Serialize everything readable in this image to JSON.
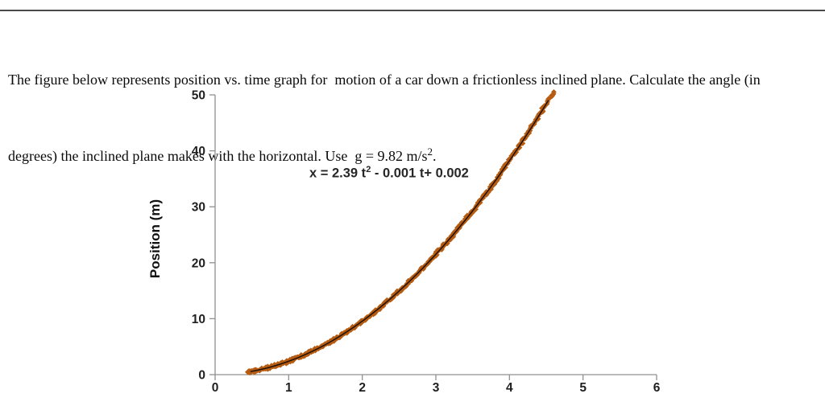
{
  "problem": {
    "line1": "The figure below represents position vs. time graph for  motion of a car down a frictionless inclined plane. Calculate the angle (in",
    "line2_prefix": "degrees) the inclined plane makes with the horizontal. Use  g = 9.82 m/s",
    "line2_sup": "2",
    "line2_suffix": "."
  },
  "chart_data": {
    "type": "scatter",
    "title": "",
    "xlabel": "",
    "ylabel": "Position (m)",
    "xlim": [
      0,
      6
    ],
    "ylim": [
      0,
      50
    ],
    "x_ticks": [
      "0",
      "1",
      "2",
      "3",
      "4",
      "5",
      "6"
    ],
    "y_ticks": [
      "0",
      "10",
      "20",
      "30",
      "40",
      "50"
    ],
    "grid": false,
    "legend": "none",
    "equation_label": {
      "prefix": "x = 2.39 t",
      "sup": "2",
      "suffix": " - 0.001 t+ 0.002"
    },
    "equation_plain": "x = 2.39 t^2 - 0.001 t + 0.002",
    "series": [
      {
        "name": "position-vs-time",
        "model": "quadratic",
        "coefficients": {
          "a": 2.39,
          "b": -0.001,
          "c": 0.002
        },
        "t_range": [
          0.44,
          4.6
        ],
        "points": [
          [
            0.5,
            0.6
          ],
          [
            1.0,
            2.39
          ],
          [
            1.5,
            5.38
          ],
          [
            2.0,
            9.56
          ],
          [
            2.5,
            14.94
          ],
          [
            3.0,
            21.51
          ],
          [
            3.5,
            29.28
          ],
          [
            4.0,
            38.24
          ],
          [
            4.5,
            48.39
          ]
        ],
        "marker": "diamond",
        "marker_color": "#B55C12",
        "trendline_color": "#201000"
      }
    ],
    "colors": {
      "axis": "#909090",
      "tick_label": "#1F1F1F"
    }
  }
}
